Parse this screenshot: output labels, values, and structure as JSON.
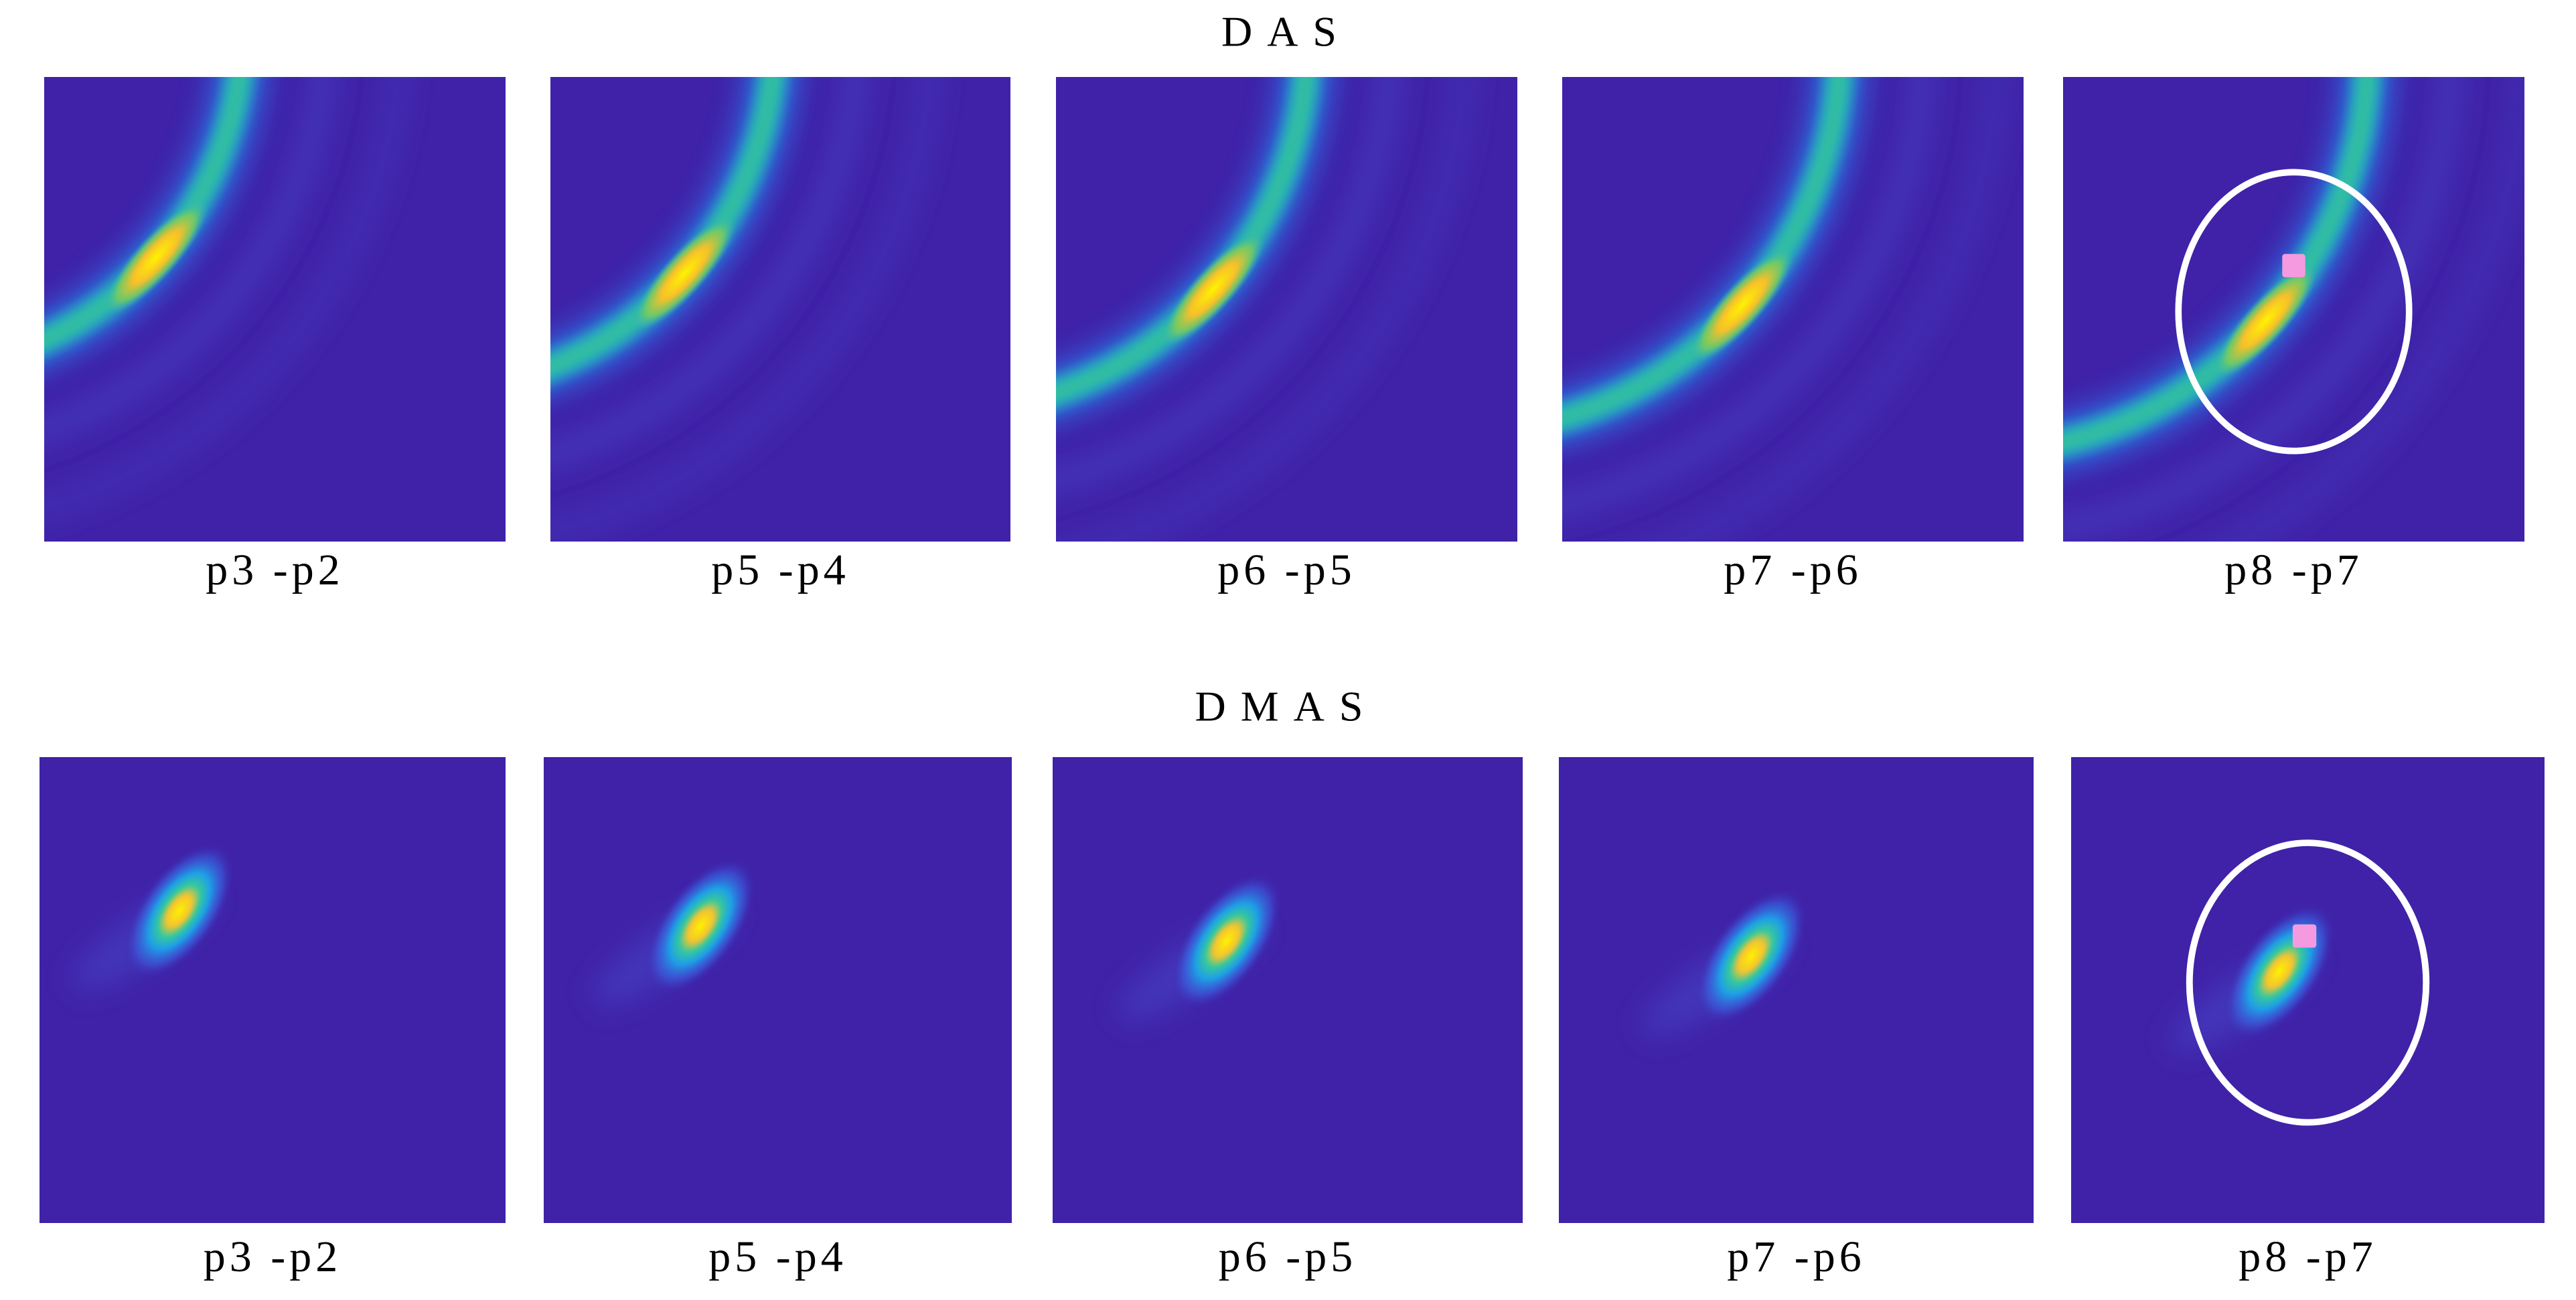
{
  "rows": [
    {
      "title": "DAS",
      "panels": [
        "p3 -p2",
        "p5 -p4",
        "p6 -p5",
        "p7 -p6",
        "p8 -p7"
      ]
    },
    {
      "title": "DMAS",
      "panels": [
        "p3 -p2",
        "p5 -p4",
        "p6 -p5",
        "p7 -p6",
        "p8 -p7"
      ]
    }
  ]
}
